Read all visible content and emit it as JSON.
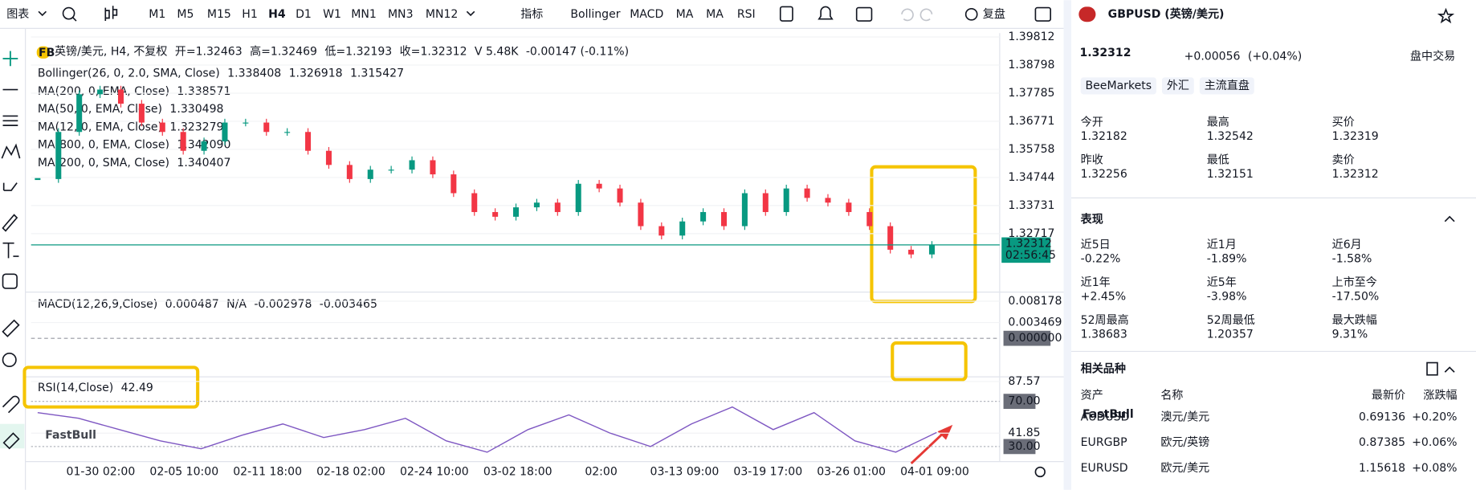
{
  "toolbar": {
    "chart_menu": "图表",
    "timeframes": [
      "M1",
      "M5",
      "M15",
      "H1",
      "H4",
      "D1",
      "W1",
      "MN1",
      "MN3",
      "MN12"
    ],
    "active_timeframe": 4,
    "indicators_menu": "指标",
    "indicators": [
      "Bollinger",
      "MACD",
      "MA",
      "MA",
      "RSI"
    ],
    "replay": "复盘"
  },
  "chart": {
    "logo": "FB",
    "name": "英镑/美元, H4, 不复权",
    "ohlc": [
      "开=1.32463",
      "高=1.32469",
      "低=1.32193",
      "收=1.32312"
    ],
    "volume": "V 5.48K",
    "change": "-0.00147 (-0.11%)",
    "overlays": [
      {
        "name": "Bollinger(26, 0, 2.0, SMA, Close)",
        "values": [
          "1.338408",
          "1.326918",
          "1.315427"
        ],
        "colors": [
          "#43a047",
          "#2962ff",
          "#43a047"
        ]
      },
      {
        "name": "MA(200, 0, EMA, Close)",
        "values": [
          "1.338571"
        ],
        "colors": [
          "#111111"
        ]
      },
      {
        "name": "MA(50, 0, EMA, Close)",
        "values": [
          "1.330498"
        ],
        "colors": [
          "#f2d035"
        ]
      },
      {
        "name": "MA(12, 0, EMA, Close)",
        "values": [
          "1.323279"
        ],
        "colors": [
          "#e53935"
        ]
      },
      {
        "name": "MA(800, 0, EMA, Close)",
        "values": [
          "1.342090"
        ],
        "colors": [
          "#f57c00"
        ]
      },
      {
        "name": "MA(200, 0, SMA, Close)",
        "values": [
          "1.340407"
        ],
        "colors": [
          "#111111"
        ]
      }
    ],
    "ylim": [
      1.3061,
      1.3995
    ],
    "yticks": [
      1.39812,
      1.38798,
      1.37785,
      1.36771,
      1.35758,
      1.34744,
      1.33731,
      1.32717
    ],
    "closes": [
      1.34687,
      1.36386,
      1.37745,
      1.37915,
      1.37405,
      1.36725,
      1.36386,
      1.35706,
      1.36046,
      1.36725,
      1.36725,
      1.36386,
      1.36386,
      1.35706,
      1.35196,
      1.34687,
      1.35026,
      1.35026,
      1.35366,
      1.34856,
      1.34177,
      1.33497,
      1.33327,
      1.33667,
      1.33837,
      1.33497,
      1.34517,
      1.34347,
      1.33837,
      1.32988,
      1.32648,
      1.33158,
      1.33497,
      1.32988,
      1.34177,
      1.33497,
      1.34347,
      1.34007,
      1.33837,
      1.33497,
      1.32988,
      1.32138,
      1.31968,
      1.32312
    ],
    "up_color": "#089981",
    "down_color": "#f23645",
    "current_price": 1.32312,
    "countdown": "02:56:45",
    "macd": {
      "name": "MACD(12,26,9,Close)",
      "values": [
        "0.000487",
        "N/A",
        "-0.002978",
        "-0.003465"
      ],
      "colors": [
        "#26a69a",
        "#f23645",
        "#2962ff",
        "#ff6d00"
      ],
      "ylim": [
        -0.0085,
        0.0102
      ],
      "yticks": [
        0.008178,
        0.003469,
        {
          "value": 0,
          "label": "0.000000"
        }
      ]
    },
    "rsi": {
      "name": "RSI(14,Close)",
      "value": "42.49",
      "color": "#7e57c2",
      "ylim": [
        16.7,
        91.7
      ],
      "yticks": [
        87.57,
        {
          "value": 70,
          "label": "70.00"
        },
        41.85,
        {
          "value": 30,
          "label": "30.00"
        }
      ],
      "values": [
        60,
        55,
        45,
        35,
        28,
        40,
        50,
        38,
        45,
        55,
        35,
        25,
        45,
        58,
        42,
        30,
        50,
        65,
        45,
        60,
        35,
        25,
        42.49
      ]
    },
    "xlabels": [
      "01-30 02:00",
      "02-05 10:00",
      "02-11 18:00",
      "02-18 02:00",
      "02-24 10:00",
      "03-02 18:00",
      "02:00",
      "03-13 09:00",
      "03-19 17:00",
      "03-26 01:00",
      "04-01 09:00"
    ],
    "watermark": "FastBull"
  },
  "panel": {
    "symbol": "GBPUSD (英镑/美元)",
    "price": "1.32312",
    "change": "+0.00056",
    "change_pct": "(+0.04%)",
    "session": "盘中交易",
    "tags": [
      "BeeMarkets",
      "外汇",
      "主流直盘"
    ],
    "quote": [
      [
        "今开",
        "1.32182",
        "最高",
        "1.32542",
        "买价",
        "1.32319"
      ],
      [
        "昨收",
        "1.32256",
        "最低",
        "1.32151",
        "卖价",
        "1.32312"
      ]
    ],
    "performance_title": "表现",
    "performance": [
      [
        "近5日",
        "-0.22%",
        "近1月",
        "-1.89%",
        "近6月",
        "-1.58%"
      ],
      [
        "近1年",
        "+2.45%",
        "近5年",
        "-3.98%",
        "上市至今",
        "-17.50%"
      ],
      [
        "52周最高",
        "1.38683",
        "52周最低",
        "1.20357",
        "最大跌幅",
        "9.31%"
      ]
    ],
    "related_title": "相关品种",
    "related_header": [
      "资产",
      "名称",
      "最新价",
      "涨跌幅"
    ],
    "related": [
      [
        "AUDUSD",
        "澳元/美元",
        "0.69136",
        "+0.20%"
      ],
      [
        "EURGBP",
        "欧元/英镑",
        "0.87385",
        "+0.06%"
      ],
      [
        "EURUSD",
        "欧元/美元",
        "1.15618",
        "+0.08%"
      ]
    ],
    "watermark": "FastBull"
  }
}
